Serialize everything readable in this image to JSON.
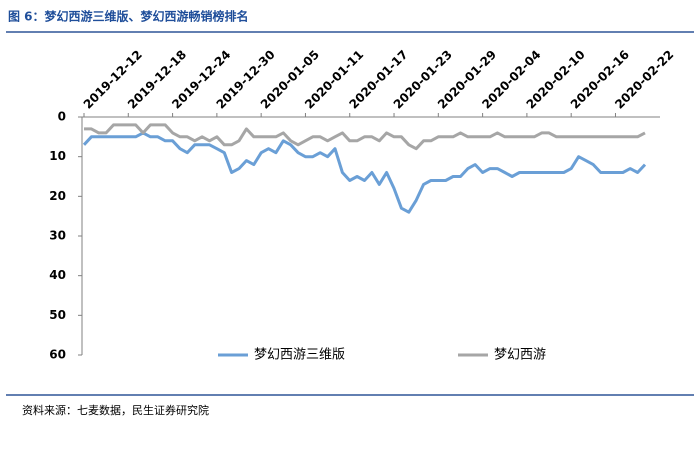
{
  "chart_data": {
    "type": "line",
    "title": "图 6：梦幻西游三维版、梦幻西游畅销榜排名",
    "source": "资料来源：七麦数据，民生证券研究院",
    "categories": [
      "2019-12-12",
      null,
      null,
      null,
      null,
      null,
      "2019-12-18",
      null,
      null,
      null,
      null,
      null,
      "2019-12-24",
      null,
      null,
      null,
      null,
      null,
      "2019-12-30",
      null,
      null,
      null,
      null,
      null,
      "2020-01-05",
      null,
      null,
      null,
      null,
      null,
      "2020-01-11",
      null,
      null,
      null,
      null,
      null,
      "2020-01-17",
      null,
      null,
      null,
      null,
      null,
      "2020-01-23",
      null,
      null,
      null,
      null,
      null,
      "2020-01-29",
      null,
      null,
      null,
      null,
      null,
      "2020-02-04",
      null,
      null,
      null,
      null,
      null,
      "2020-02-10",
      null,
      null,
      null,
      null,
      null,
      "2020-02-16",
      null,
      null,
      null,
      null,
      null,
      "2020-02-22",
      null,
      null,
      null,
      null
    ],
    "series": [
      {
        "name": "梦幻西游三维版",
        "color": "#6a9fd6",
        "values": [
          7,
          5,
          5,
          5,
          5,
          5,
          5,
          5,
          4,
          5,
          5,
          6,
          6,
          8,
          9,
          7,
          7,
          7,
          8,
          9,
          14,
          13,
          11,
          12,
          9,
          8,
          9,
          6,
          7,
          9,
          10,
          10,
          9,
          10,
          8,
          14,
          16,
          15,
          16,
          14,
          17,
          14,
          18,
          23,
          24,
          21,
          17,
          16,
          16,
          16,
          15,
          15,
          13,
          12,
          14,
          13,
          13,
          14,
          15,
          14,
          14,
          14,
          14,
          14,
          14,
          14,
          13,
          10,
          11,
          12,
          14,
          14,
          14,
          14,
          13,
          14,
          12
        ]
      },
      {
        "name": "梦幻西游",
        "color": "#a6a6a6",
        "values": [
          3,
          3,
          4,
          4,
          2,
          2,
          2,
          2,
          4,
          2,
          2,
          2,
          4,
          5,
          5,
          6,
          5,
          6,
          5,
          7,
          7,
          6,
          3,
          5,
          5,
          5,
          5,
          4,
          6,
          7,
          6,
          5,
          5,
          6,
          5,
          4,
          6,
          6,
          5,
          5,
          6,
          4,
          5,
          5,
          7,
          8,
          6,
          6,
          5,
          5,
          5,
          4,
          5,
          5,
          5,
          5,
          4,
          5,
          5,
          5,
          5,
          5,
          4,
          4,
          5,
          5,
          5,
          5,
          5,
          5,
          5,
          5,
          5,
          5,
          5,
          5,
          4
        ]
      }
    ],
    "ylim": [
      0,
      60
    ],
    "yticks": [
      0,
      10,
      20,
      30,
      40,
      50,
      60
    ],
    "y_inverted": true,
    "grid": false,
    "legend": "bottom"
  }
}
